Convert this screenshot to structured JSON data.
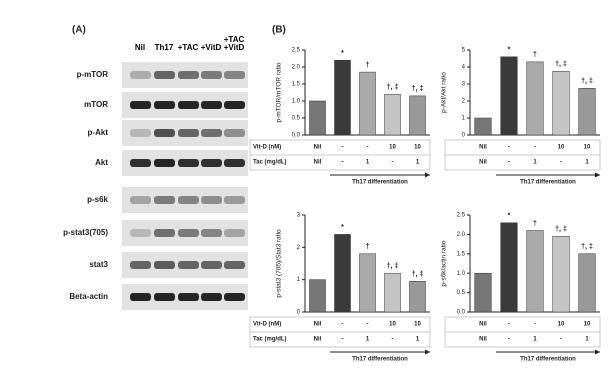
{
  "panel_a": {
    "label": "(A)",
    "lanes": [
      "Nil",
      "Th17",
      "+TAC",
      "+VitD",
      "+TAC\n+VitD"
    ],
    "rows": [
      "p-mTOR",
      "mTOR",
      "p-Akt",
      "Akt",
      "p-s6k",
      "p-stat3(705)",
      "stat3",
      "Beta-actin"
    ]
  },
  "panel_b": {
    "label": "(B)"
  },
  "chart_data": [
    {
      "type": "bar",
      "ylabel": "p-mTOR/mTOR ratio",
      "values": [
        1.0,
        2.2,
        1.85,
        1.2,
        1.15
      ],
      "annotations": [
        null,
        "*",
        "†",
        "†, ‡",
        "†, ‡"
      ],
      "colors": [
        "#777777",
        "#3a3a3a",
        "#aaaaaa",
        "#c4c4c4",
        "#999999"
      ],
      "ylim": [
        0,
        2.5
      ],
      "yticks": [
        {
          "value": 0,
          "label": "0.0"
        },
        0.5,
        {
          "value": 1,
          "label": "1.0"
        },
        1.5,
        {
          "value": 2,
          "label": "2.0"
        },
        2.5
      ],
      "table": {
        "row_labels": [
          "Vit-D (nM)",
          "Tac (mg/dL)"
        ],
        "rows": [
          [
            "Nil",
            "-",
            "-",
            "10",
            "10"
          ],
          [
            "Nil",
            "-",
            "1",
            "-",
            "1"
          ]
        ]
      },
      "xlabel": "Th17 differentiation"
    },
    {
      "type": "bar",
      "ylabel": "p-Akt/Akt ratio",
      "values": [
        1.0,
        4.6,
        4.3,
        3.75,
        2.75
      ],
      "annotations": [
        null,
        "*",
        "†",
        "†, ‡",
        "†, ‡"
      ],
      "colors": [
        "#777777",
        "#3a3a3a",
        "#aaaaaa",
        "#c4c4c4",
        "#999999"
      ],
      "ylim": [
        0,
        5
      ],
      "yticks": [
        0,
        1,
        2,
        3,
        4,
        5
      ],
      "table": {
        "rows": [
          [
            "Nil",
            "-",
            "-",
            "10",
            "10"
          ],
          [
            "Nil",
            "-",
            "1",
            "-",
            "1"
          ]
        ]
      },
      "xlabel": "Th17 differentiation"
    },
    {
      "type": "bar",
      "ylabel": "p-stat3 (705)/Stat3 ratio",
      "values": [
        1.0,
        2.4,
        1.8,
        1.2,
        0.95
      ],
      "annotations": [
        null,
        "*",
        "†",
        "†, ‡",
        "†, ‡"
      ],
      "colors": [
        "#777777",
        "#3a3a3a",
        "#aaaaaa",
        "#c4c4c4",
        "#999999"
      ],
      "ylim": [
        0,
        3
      ],
      "yticks": [
        0,
        1,
        2,
        3
      ],
      "table": {
        "row_labels": [
          "Vit-D (nM)",
          "Tac (mg/dL)"
        ],
        "rows": [
          [
            "Nil",
            "-",
            "-",
            "10",
            "10"
          ],
          [
            "Nil",
            "-",
            "1",
            "-",
            "1"
          ]
        ]
      },
      "xlabel": "Th17 differentiation"
    },
    {
      "type": "bar",
      "ylabel": "p-s6k/actin ratio",
      "values": [
        1.0,
        2.3,
        2.1,
        1.95,
        1.5
      ],
      "annotations": [
        null,
        "*",
        "†",
        "†, ‡",
        "†, ‡"
      ],
      "colors": [
        "#777777",
        "#3a3a3a",
        "#aaaaaa",
        "#c4c4c4",
        "#999999"
      ],
      "ylim": [
        0,
        2.5
      ],
      "yticks": [
        {
          "value": 0,
          "label": "0.0"
        },
        0.5,
        {
          "value": 1,
          "label": "1.0"
        },
        1.5,
        {
          "value": 2,
          "label": "2.0"
        },
        2.5
      ],
      "table": {
        "rows": [
          [
            "Nil",
            "-",
            "-",
            "10",
            "10"
          ],
          [
            "Nil",
            "-",
            "1",
            "-",
            "1"
          ]
        ]
      },
      "xlabel": "Th17 differentiation"
    }
  ]
}
